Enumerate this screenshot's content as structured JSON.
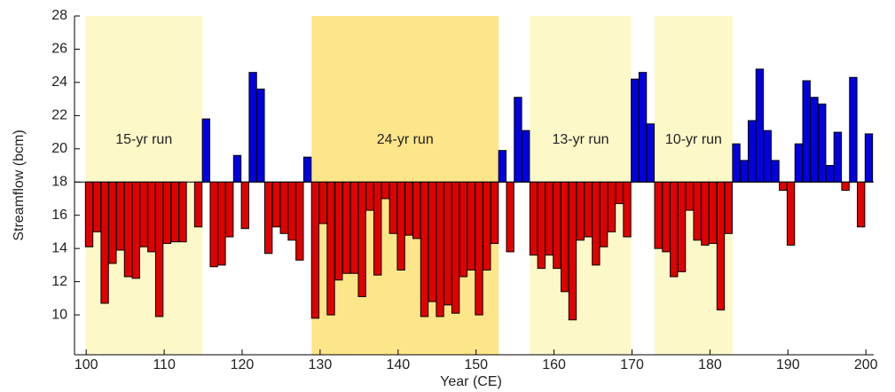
{
  "chart_data": {
    "type": "bar",
    "x_label": "Year (CE)",
    "y_label": "Streamflow (bcm)",
    "x": [
      100,
      101,
      102,
      103,
      104,
      105,
      106,
      107,
      108,
      109,
      110,
      111,
      112,
      113,
      114,
      115,
      116,
      117,
      118,
      119,
      120,
      121,
      122,
      123,
      124,
      125,
      126,
      127,
      128,
      129,
      130,
      131,
      132,
      133,
      134,
      135,
      136,
      137,
      138,
      139,
      140,
      141,
      142,
      143,
      144,
      145,
      146,
      147,
      148,
      149,
      150,
      151,
      152,
      153,
      154,
      155,
      156,
      157,
      158,
      159,
      160,
      161,
      162,
      163,
      164,
      165,
      166,
      167,
      168,
      169,
      170,
      171,
      172,
      173,
      174,
      175,
      176,
      177,
      178,
      179,
      180,
      181,
      182,
      183,
      184,
      185,
      186,
      187,
      188,
      189,
      190,
      191,
      192,
      193,
      194,
      195,
      196,
      197,
      198,
      199,
      200
    ],
    "values": [
      14.1,
      15.0,
      10.7,
      13.1,
      13.9,
      12.3,
      12.2,
      14.1,
      13.8,
      9.9,
      14.3,
      14.4,
      14.4,
      null,
      15.3,
      21.8,
      12.9,
      13.0,
      14.7,
      19.6,
      15.2,
      24.6,
      23.6,
      13.7,
      15.3,
      14.9,
      14.5,
      13.3,
      19.5,
      9.8,
      15.5,
      10.0,
      12.1,
      12.5,
      12.5,
      11.1,
      16.3,
      12.4,
      17.0,
      14.9,
      12.7,
      14.8,
      14.6,
      9.9,
      10.8,
      9.9,
      10.6,
      10.1,
      12.3,
      12.7,
      10.0,
      12.7,
      14.3,
      19.9,
      13.8,
      23.1,
      21.1,
      13.6,
      12.8,
      13.6,
      12.8,
      11.4,
      9.7,
      14.5,
      14.7,
      13.0,
      14.1,
      15.0,
      16.7,
      14.7,
      24.2,
      24.6,
      21.5,
      14.0,
      13.8,
      12.3,
      12.6,
      16.3,
      14.5,
      14.2,
      14.3,
      10.3,
      14.9,
      20.3,
      19.3,
      21.7,
      24.8,
      21.1,
      19.3,
      17.5,
      14.2,
      20.3,
      24.1,
      23.1,
      22.7,
      19.0,
      21.0,
      17.5,
      24.3,
      15.3,
      20.9
    ],
    "baseline": 18,
    "color_above": "#0000e0",
    "color_below": "#e00000",
    "spans": [
      {
        "label": "15-yr run",
        "start": 100,
        "end": 114,
        "color": "#fdf8c8"
      },
      {
        "label": "24-yr run",
        "start": 129,
        "end": 152,
        "color": "#fde589"
      },
      {
        "label": "13-yr run",
        "start": 157,
        "end": 169,
        "color": "#fdf8c8"
      },
      {
        "label": "10-yr run",
        "start": 173,
        "end": 182,
        "color": "#fdf8c8"
      }
    ],
    "xlim": [
      98.5,
      201
    ],
    "ylim": [
      7.6,
      28
    ],
    "xticks": [
      100,
      110,
      120,
      130,
      140,
      150,
      160,
      170,
      180,
      190,
      200
    ],
    "yticks": [
      10,
      12,
      14,
      16,
      18,
      20,
      22,
      24,
      26,
      28
    ]
  }
}
